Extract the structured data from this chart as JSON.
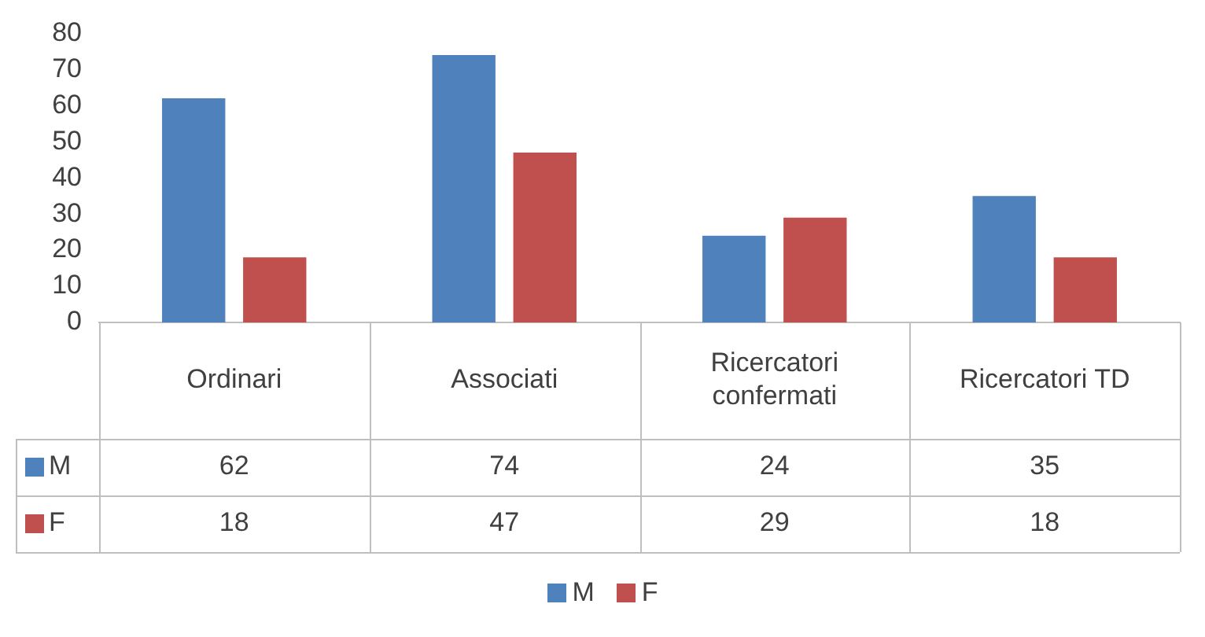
{
  "chart_data": {
    "type": "bar",
    "categories": [
      "Ordinari",
      "Associati",
      "Ricercatori confermati",
      "Ricercatori TD"
    ],
    "series": [
      {
        "name": "M",
        "color": "#4f81bd",
        "values": [
          62,
          74,
          24,
          35
        ]
      },
      {
        "name": "F",
        "color": "#c0504d",
        "values": [
          18,
          47,
          29,
          18
        ]
      }
    ],
    "ylim": [
      0,
      80
    ],
    "yticks": [
      0,
      10,
      20,
      30,
      40,
      50,
      60,
      70,
      80
    ],
    "grid": false,
    "legend": "bottom",
    "data_labels": true
  }
}
